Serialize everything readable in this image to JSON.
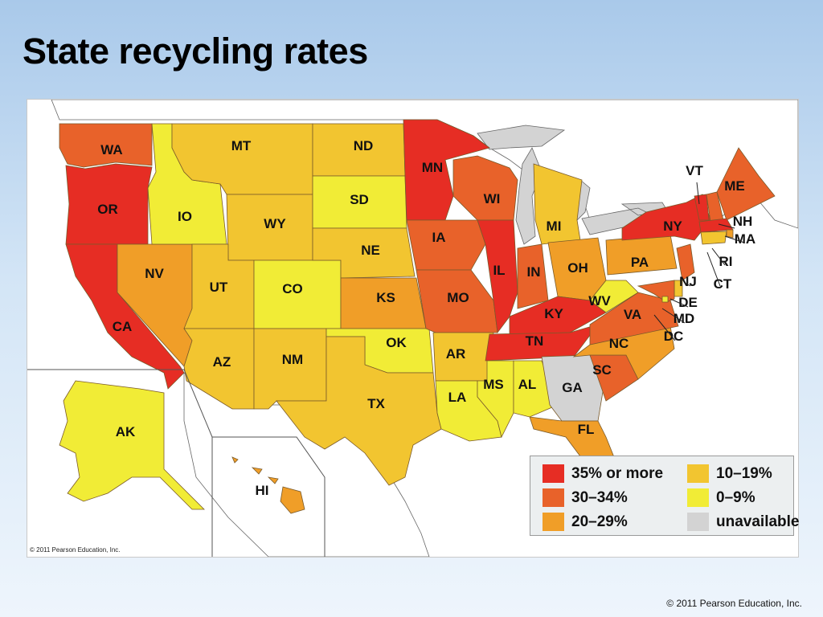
{
  "title": "State recycling rates",
  "map_copyright": "© 2011 Pearson Education, Inc.",
  "footer_copyright": "© 2011 Pearson Education, Inc.",
  "colors": {
    "35_or_more": "#e62d24",
    "30_34": "#e8622a",
    "20_29": "#f09e28",
    "10_19": "#f2c530",
    "0_9": "#f1ec36",
    "unavailable": "#d3d3d3"
  },
  "legend": [
    {
      "key": "35_or_more",
      "label": "35% or more"
    },
    {
      "key": "30_34",
      "label": "30–34%"
    },
    {
      "key": "20_29",
      "label": "20–29%"
    },
    {
      "key": "10_19",
      "label": "10–19%"
    },
    {
      "key": "0_9",
      "label": "0–9%"
    },
    {
      "key": "unavailable",
      "label": "unavailable"
    }
  ],
  "states": [
    {
      "abbr": "WA",
      "category": "30_34"
    },
    {
      "abbr": "OR",
      "category": "35_or_more"
    },
    {
      "abbr": "CA",
      "category": "35_or_more"
    },
    {
      "abbr": "NV",
      "category": "20_29"
    },
    {
      "abbr": "IO",
      "category": "0_9"
    },
    {
      "abbr": "MT",
      "category": "10_19"
    },
    {
      "abbr": "WY",
      "category": "10_19"
    },
    {
      "abbr": "UT",
      "category": "10_19"
    },
    {
      "abbr": "AZ",
      "category": "10_19"
    },
    {
      "abbr": "CO",
      "category": "0_9"
    },
    {
      "abbr": "NM",
      "category": "10_19"
    },
    {
      "abbr": "ND",
      "category": "10_19"
    },
    {
      "abbr": "SD",
      "category": "0_9"
    },
    {
      "abbr": "NE",
      "category": "10_19"
    },
    {
      "abbr": "KS",
      "category": "20_29"
    },
    {
      "abbr": "OK",
      "category": "0_9"
    },
    {
      "abbr": "TX",
      "category": "10_19"
    },
    {
      "abbr": "MN",
      "category": "35_or_more"
    },
    {
      "abbr": "IA",
      "category": "30_34"
    },
    {
      "abbr": "MO",
      "category": "30_34"
    },
    {
      "abbr": "AR",
      "category": "10_19"
    },
    {
      "abbr": "LA",
      "category": "0_9"
    },
    {
      "abbr": "WI",
      "category": "30_34"
    },
    {
      "abbr": "IL",
      "category": "35_or_more"
    },
    {
      "abbr": "MI",
      "category": "10_19"
    },
    {
      "abbr": "IN",
      "category": "30_34"
    },
    {
      "abbr": "OH",
      "category": "20_29"
    },
    {
      "abbr": "KY",
      "category": "35_or_more"
    },
    {
      "abbr": "TN",
      "category": "35_or_more"
    },
    {
      "abbr": "MS",
      "category": "0_9"
    },
    {
      "abbr": "AL",
      "category": "0_9"
    },
    {
      "abbr": "GA",
      "category": "unavailable"
    },
    {
      "abbr": "FL",
      "category": "20_29"
    },
    {
      "abbr": "SC",
      "category": "30_34"
    },
    {
      "abbr": "NC",
      "category": "20_29"
    },
    {
      "abbr": "VA",
      "category": "30_34"
    },
    {
      "abbr": "WV",
      "category": "0_9"
    },
    {
      "abbr": "PA",
      "category": "20_29"
    },
    {
      "abbr": "NY",
      "category": "35_or_more"
    },
    {
      "abbr": "VT",
      "category": "35_or_more"
    },
    {
      "abbr": "NH",
      "category": "30_34"
    },
    {
      "abbr": "ME",
      "category": "30_34"
    },
    {
      "abbr": "MA",
      "category": "35_or_more"
    },
    {
      "abbr": "RI",
      "category": "20_29"
    },
    {
      "abbr": "CT",
      "category": "10_19"
    },
    {
      "abbr": "NJ",
      "category": "30_34"
    },
    {
      "abbr": "DE",
      "category": "10_19"
    },
    {
      "abbr": "MD",
      "category": "30_34"
    },
    {
      "abbr": "DC",
      "category": "0_9"
    },
    {
      "abbr": "AK",
      "category": "0_9"
    },
    {
      "abbr": "HI",
      "category": "20_29"
    }
  ]
}
